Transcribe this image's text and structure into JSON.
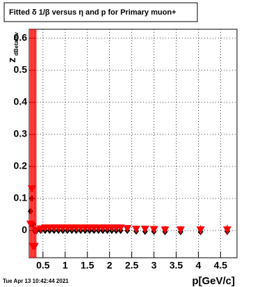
{
  "chart_data": {
    "type": "scatter",
    "title": "Fitted δ 1/β versus η and p for Primary muon+",
    "x_label": "p[GeV/c]",
    "y_label": "z",
    "y_label_sub": "dBetainv",
    "footer": "Tue Apr 13 10:42:44 2021",
    "xlim": [
      0.19,
      4.87
    ],
    "ylim": [
      -0.085,
      0.628
    ],
    "xticks": [
      0.5,
      1,
      1.5,
      2,
      2.5,
      3,
      3.5,
      4,
      4.5
    ],
    "yticks": [
      0,
      0.1,
      0.2,
      0.3,
      0.4,
      0.5,
      0.6
    ],
    "grid": true,
    "x": [
      0.22,
      0.25,
      0.28,
      0.31,
      0.34,
      0.45,
      0.55,
      0.65,
      0.75,
      0.85,
      0.95,
      1.05,
      1.15,
      1.25,
      1.35,
      1.45,
      1.55,
      1.65,
      1.75,
      1.85,
      1.95,
      2.05,
      2.15,
      2.25,
      2.4,
      2.6,
      2.8,
      3.0,
      3.25,
      3.6,
      4.05,
      4.65
    ],
    "series": [
      {
        "color": "#000000",
        "marker": "diamond",
        "values": [
          0.06,
          0.1,
          0.02,
          0.0,
          -0.003,
          0.0,
          0.0,
          0.0,
          0.0,
          0.0,
          0.0,
          0.0,
          0.0,
          0.0,
          0.0,
          0.0,
          0.0,
          0.0,
          0.0,
          0.0,
          0.0,
          0.0,
          0.0,
          0.0,
          0.0,
          -0.002,
          -0.003,
          -0.003,
          -0.004,
          -0.004,
          -0.004,
          -0.003
        ]
      },
      {
        "color": "#ff0000",
        "marker": "triangle",
        "values": [
          0.02,
          0.13,
          -0.05,
          -0.05,
          0.0,
          0.005,
          0.008,
          0.008,
          0.008,
          0.008,
          0.008,
          0.008,
          0.008,
          0.008,
          0.008,
          0.008,
          0.008,
          0.008,
          0.008,
          0.008,
          0.008,
          0.008,
          0.008,
          0.008,
          0.006,
          0.004,
          0.004,
          0.003,
          0.002,
          0.002,
          0.002,
          0.002
        ],
        "errors": [
          0.9,
          0.9,
          0.9,
          0.9,
          0.9,
          0.01,
          0.008,
          0.008,
          0.008,
          0.008,
          0.008,
          0.008,
          0.008,
          0.008,
          0.008,
          0.008,
          0.008,
          0.008,
          0.008,
          0.008,
          0.008,
          0.008,
          0.008,
          0.008,
          0.01,
          0.01,
          0.01,
          0.012,
          0.012,
          0.012,
          0.014,
          0.016
        ]
      }
    ]
  }
}
